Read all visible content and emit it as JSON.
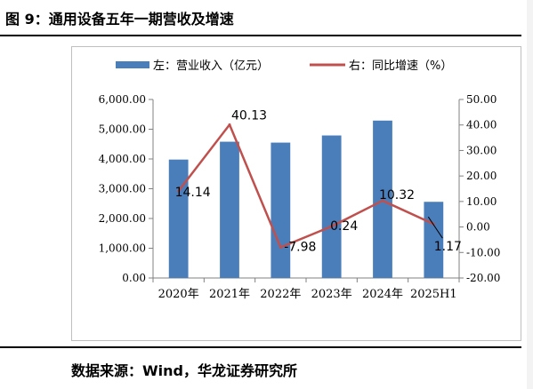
{
  "figure": {
    "title": "图 9：通用设备五年一期营收及增速",
    "source": "数据来源：Wind，华龙证券研究所"
  },
  "colors": {
    "bar": "#4a7ebb",
    "line": "#c0504d",
    "axis": "#808080",
    "text": "#000000"
  },
  "chart_data": {
    "type": "bar",
    "categories": [
      "2020年",
      "2021年",
      "2022年",
      "2023年",
      "2024年",
      "2025H1"
    ],
    "legend_position": "top",
    "series": [
      {
        "name": "左：营业收入（亿元）",
        "type": "bar",
        "axis": "left",
        "values": [
          3980,
          4580,
          4550,
          4790,
          5290,
          2560
        ]
      },
      {
        "name": "右：同比增速（%）",
        "type": "line",
        "axis": "right",
        "values": [
          14.14,
          40.13,
          -7.98,
          0.24,
          10.32,
          1.17
        ],
        "data_labels": [
          "14.14",
          "40.13",
          "-7.98",
          "0.24",
          "10.32",
          "1.17"
        ]
      }
    ],
    "y_left": {
      "min": 0,
      "max": 6000,
      "ticks": [
        0,
        1000,
        2000,
        3000,
        4000,
        5000,
        6000
      ],
      "tick_labels": [
        "0.00",
        "1,000.00",
        "2,000.00",
        "3,000.00",
        "4,000.00",
        "5,000.00",
        "6,000.00"
      ]
    },
    "y_right": {
      "min": -20,
      "max": 50,
      "ticks": [
        -20,
        -10,
        0,
        10,
        20,
        30,
        40,
        50
      ],
      "tick_labels": [
        "-20.00",
        "-10.00",
        "0.00",
        "10.00",
        "20.00",
        "30.00",
        "40.00",
        "50.00"
      ]
    },
    "grid": false
  }
}
